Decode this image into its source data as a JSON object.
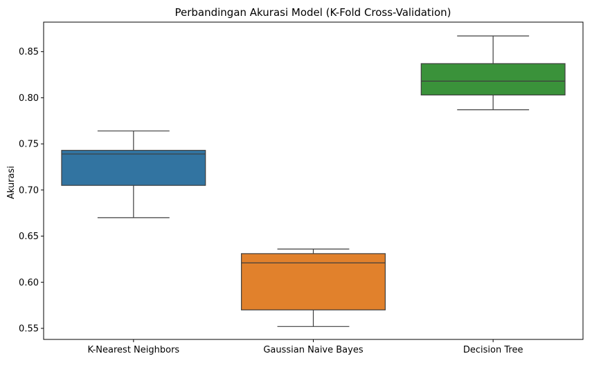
{
  "chart_data": {
    "type": "box",
    "title": "Perbandingan Akurasi Model (K-Fold Cross-Validation)",
    "xlabel": "",
    "ylabel": "Akurasi",
    "ylim": [
      0.538,
      0.882
    ],
    "yticks": [
      0.55,
      0.6,
      0.65,
      0.7,
      0.75,
      0.8,
      0.85
    ],
    "ytick_labels": [
      "0.55",
      "0.60",
      "0.65",
      "0.70",
      "0.75",
      "0.80",
      "0.85"
    ],
    "grid": false,
    "categories": [
      "K-Nearest Neighbors",
      "Gaussian Naive Bayes",
      "Decision Tree"
    ],
    "boxes": [
      {
        "category": "K-Nearest Neighbors",
        "whisker_low": 0.67,
        "q1": 0.705,
        "median": 0.739,
        "q3": 0.743,
        "whisker_high": 0.764,
        "color": "#3274a1"
      },
      {
        "category": "Gaussian Naive Bayes",
        "whisker_low": 0.552,
        "q1": 0.57,
        "median": 0.621,
        "q3": 0.631,
        "whisker_high": 0.636,
        "color": "#e1812c"
      },
      {
        "category": "Decision Tree",
        "whisker_low": 0.787,
        "q1": 0.803,
        "median": 0.818,
        "q3": 0.837,
        "whisker_high": 0.867,
        "color": "#3a923a"
      }
    ],
    "line_color": "#3d3d3d"
  }
}
